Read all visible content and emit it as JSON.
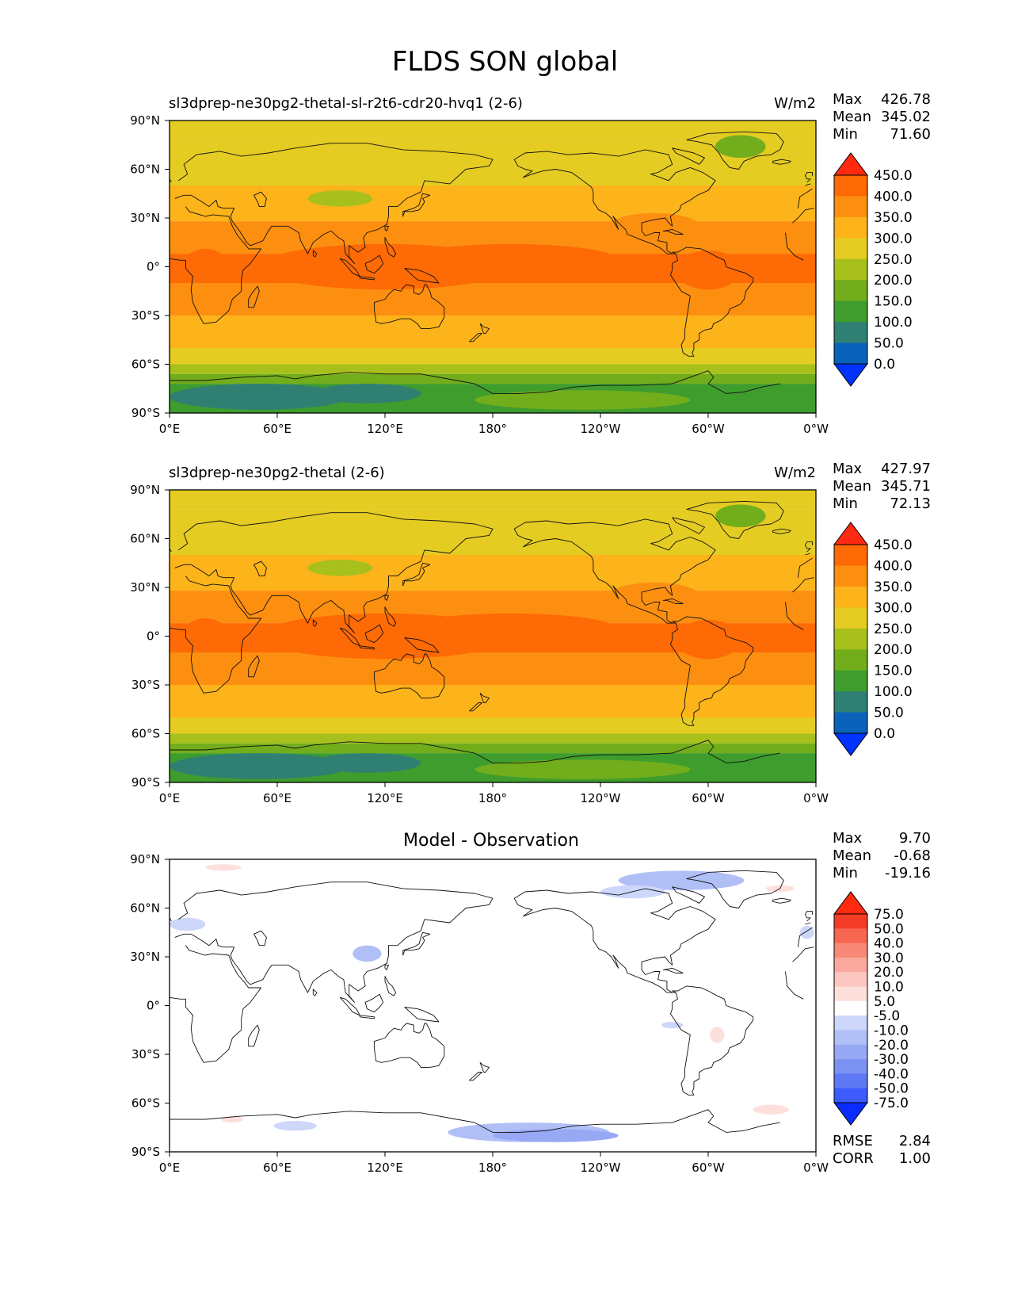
{
  "figure_title": "FLDS SON global",
  "colors": {
    "abs_levels": [
      "#0033ff",
      "#0a62bb",
      "#2f8073",
      "#3e9d2d",
      "#72ad1c",
      "#a8c01c",
      "#e5cc22",
      "#fdb31a",
      "#fd8f10",
      "#fe6a05",
      "#ff2a10"
    ],
    "diff_levels": [
      "#0a2cff",
      "#3c5cff",
      "#5f79f5",
      "#7c92f2",
      "#97a8f4",
      "#b1bff7",
      "#cdd7fa",
      "#ffffff",
      "#fde0dc",
      "#fcc7c0",
      "#fba99e",
      "#f98977",
      "#f66650",
      "#f53c26",
      "#ff2a10"
    ]
  },
  "chart_data": [
    {
      "type": "heatmap",
      "panel": "test",
      "title": "sl3dprep-ne30pg2-thetal-sl-r2t6-cdr20-hvq1 (2-6)",
      "units": "W/m2",
      "stats": {
        "max_label": "Max",
        "max": "426.78",
        "mean_label": "Mean",
        "mean": "345.02",
        "min_label": "Min",
        "min": "71.60"
      },
      "x_ticks": [
        "0°E",
        "60°E",
        "120°E",
        "180°",
        "120°W",
        "60°W",
        "0°W"
      ],
      "y_ticks": [
        "90°N",
        "60°N",
        "30°N",
        "0°",
        "30°S",
        "60°S",
        "90°S"
      ],
      "xlim": [
        0,
        360
      ],
      "ylim": [
        -90,
        90
      ],
      "colorbar_levels": [
        "450.0",
        "400.0",
        "350.0",
        "300.0",
        "250.0",
        "200.0",
        "150.0",
        "100.0",
        "50.0",
        "0.0"
      ],
      "colorbar_extend": "both",
      "colorbar_placement": "right"
    },
    {
      "type": "heatmap",
      "panel": "reference",
      "title": "sl3dprep-ne30pg2-thetal (2-6)",
      "units": "W/m2",
      "stats": {
        "max_label": "Max",
        "max": "427.97",
        "mean_label": "Mean",
        "mean": "345.71",
        "min_label": "Min",
        "min": "72.13"
      },
      "x_ticks": [
        "0°E",
        "60°E",
        "120°E",
        "180°",
        "120°W",
        "60°W",
        "0°W"
      ],
      "y_ticks": [
        "90°N",
        "60°N",
        "30°N",
        "0°",
        "30°S",
        "60°S",
        "90°S"
      ],
      "xlim": [
        0,
        360
      ],
      "ylim": [
        -90,
        90
      ],
      "colorbar_levels": [
        "450.0",
        "400.0",
        "350.0",
        "300.0",
        "250.0",
        "200.0",
        "150.0",
        "100.0",
        "50.0",
        "0.0"
      ],
      "colorbar_extend": "both",
      "colorbar_placement": "right"
    },
    {
      "type": "heatmap",
      "panel": "difference",
      "title": "Model - Observation",
      "units": "",
      "stats": {
        "max_label": "Max",
        "max": "9.70",
        "mean_label": "Mean",
        "mean": "-0.68",
        "min_label": "Min",
        "min": "-19.16"
      },
      "metrics": {
        "rmse_label": "RMSE",
        "rmse": "2.84",
        "corr_label": "CORR",
        "corr": "1.00"
      },
      "x_ticks": [
        "0°E",
        "60°E",
        "120°E",
        "180°",
        "120°W",
        "60°W",
        "0°W"
      ],
      "y_ticks": [
        "90°N",
        "60°N",
        "30°N",
        "0°",
        "30°S",
        "60°S",
        "90°S"
      ],
      "xlim": [
        0,
        360
      ],
      "ylim": [
        -90,
        90
      ],
      "colorbar_levels": [
        "75.0",
        "50.0",
        "40.0",
        "30.0",
        "20.0",
        "10.0",
        "5.0",
        "-5.0",
        "-10.0",
        "-20.0",
        "-30.0",
        "-40.0",
        "-50.0",
        "-75.0"
      ],
      "colorbar_extend": "both",
      "colorbar_placement": "right"
    }
  ]
}
